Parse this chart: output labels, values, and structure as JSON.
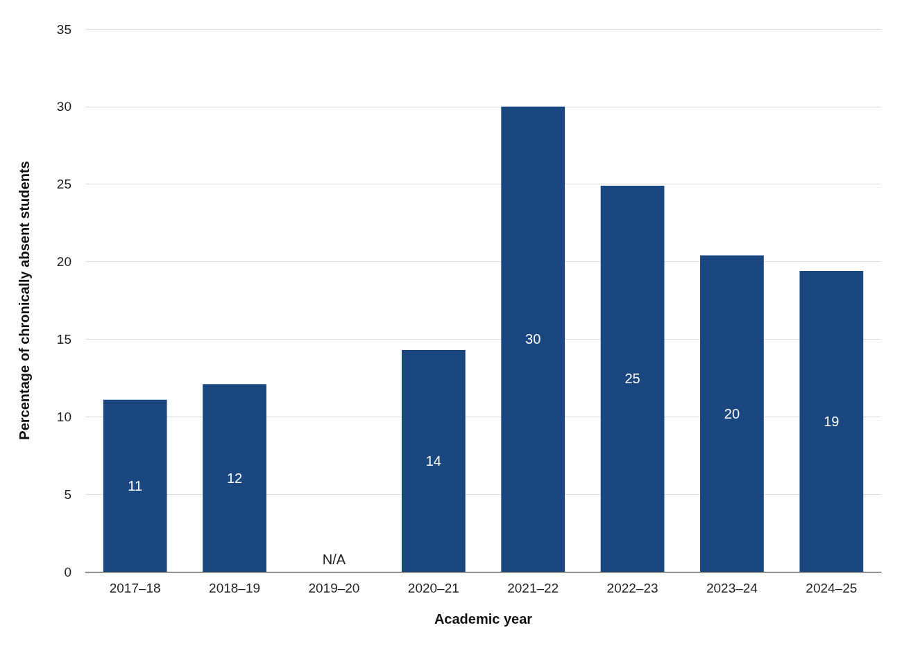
{
  "chart_data": {
    "type": "bar",
    "xlabel": "Academic year",
    "ylabel": "Percentage of chronically absent students",
    "categories": [
      "2017–18",
      "2018–19",
      "2019–20",
      "2020–21",
      "2021–22",
      "2022–23",
      "2023–24",
      "2024–25"
    ],
    "values": [
      11.1,
      12.1,
      null,
      14.3,
      30,
      24.9,
      20.4,
      19.4
    ],
    "value_labels": [
      "11",
      "12",
      "N/A",
      "14",
      "30",
      "25",
      "20",
      "19"
    ],
    "color": "#1a4780",
    "ylim": [
      0,
      35
    ],
    "yticks": [
      0,
      5,
      10,
      15,
      20,
      25,
      30,
      35
    ],
    "grid": "y"
  }
}
